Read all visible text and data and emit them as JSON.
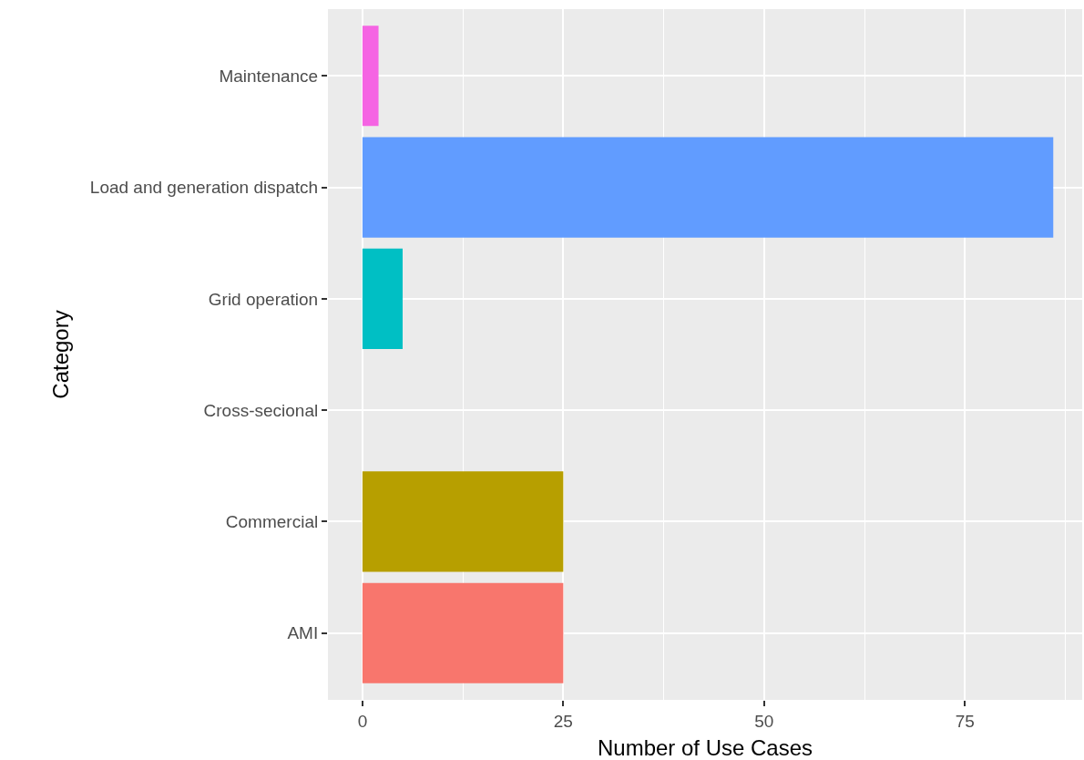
{
  "chart_data": {
    "type": "bar",
    "orientation": "horizontal",
    "xlabel": "Number of Use Cases",
    "ylabel": "Category",
    "categories": [
      "Maintenance",
      "Load and generation dispatch",
      "Grid operation",
      "Cross-secional",
      "Commercial",
      "AMI"
    ],
    "values": [
      2,
      86,
      5,
      0,
      25,
      25
    ],
    "colors": [
      "#f564e3",
      "#619cff",
      "#00bfc4",
      "#00ba38",
      "#b79f00",
      "#f8766d"
    ],
    "xlim": [
      -4.3,
      89.6
    ],
    "xticks": [
      0,
      25,
      50,
      75
    ],
    "grid": true
  }
}
